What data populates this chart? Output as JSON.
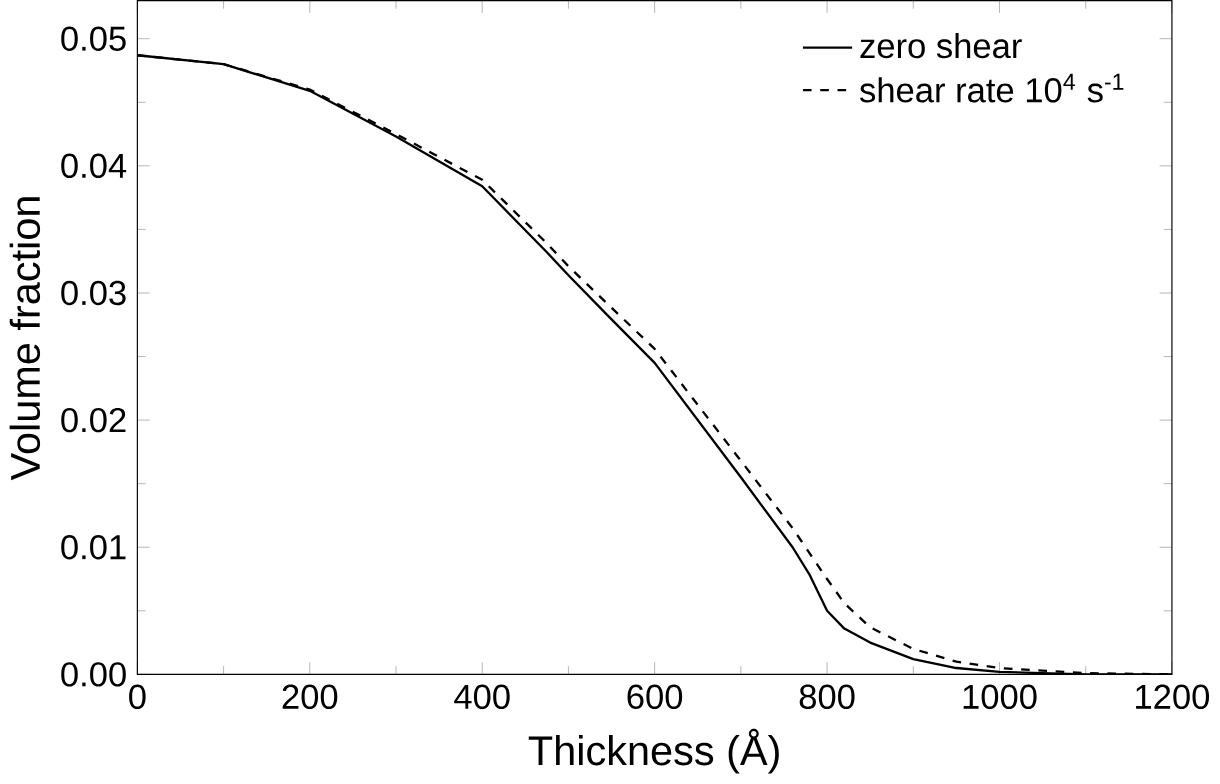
{
  "chart_data": {
    "type": "line",
    "xlabel": "Thickness (Å)",
    "ylabel": "Volume fraction",
    "xlim": [
      0,
      1200
    ],
    "ylim": [
      0,
      0.053
    ],
    "xticks": [
      0,
      200,
      400,
      600,
      800,
      1000,
      1200
    ],
    "yticks": [
      {
        "value": 0,
        "label": "0.00"
      },
      {
        "value": 0.01,
        "label": "0.01"
      },
      {
        "value": 0.02,
        "label": "0.02"
      },
      {
        "value": 0.03,
        "label": "0.03"
      },
      {
        "value": 0.04,
        "label": "0.04"
      },
      {
        "value": 0.05,
        "label": "0.05"
      }
    ],
    "legend": "top right",
    "grid": false,
    "marker": "none",
    "x": [
      0,
      100,
      200,
      300,
      400,
      475,
      500,
      546,
      600,
      700,
      760,
      780,
      800,
      820,
      850,
      900,
      950,
      1000,
      1100,
      1200
    ],
    "series": [
      {
        "name": "zero shear",
        "color": "#000000",
        "line_style": "solid",
        "values": [
          0.0487,
          0.048,
          0.0459,
          0.0423,
          0.0384,
          0.0332,
          0.0314,
          0.0282,
          0.0245,
          0.0155,
          0.01,
          0.0078,
          0.005,
          0.0036,
          0.0025,
          0.0012,
          0.0005,
          0.0002,
          0,
          0
        ]
      },
      {
        "name": "shear rate 10$^{4}$ s$^{-1}$",
        "color": "#000000",
        "line_style": "dashed",
        "values": [
          0.0487,
          0.048,
          0.046,
          0.0425,
          0.0389,
          0.0339,
          0.0321,
          0.0291,
          0.0256,
          0.0168,
          0.0115,
          0.0095,
          0.0075,
          0.0056,
          0.0037,
          0.002,
          0.001,
          0.0005,
          0.0001,
          0
        ]
      }
    ]
  }
}
